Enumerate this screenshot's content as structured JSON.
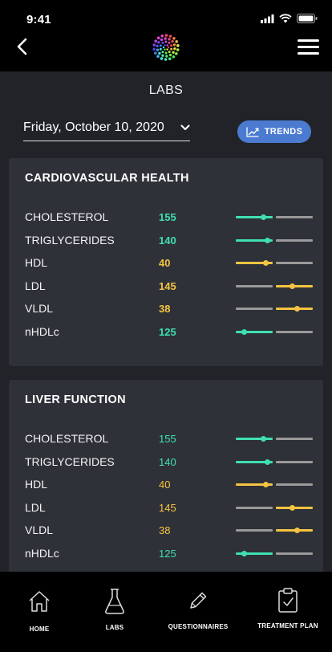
{
  "status_bar": {
    "time": "9:41"
  },
  "header": {
    "title": "LABS"
  },
  "date_selector": {
    "value": "Friday, October 10, 2020"
  },
  "trends_button": {
    "label": "TRENDS"
  },
  "colors": {
    "green": "#3fe0b0",
    "yellow": "#f5c441",
    "gray": "#9a9a9a",
    "accent": "#4a7bd0"
  },
  "sections": [
    {
      "title": "CARDIOVASCULAR HEALTH",
      "rows": [
        {
          "name": "CHOLESTEROL",
          "value": "155",
          "status": "green",
          "zone": 0,
          "level": 0.75
        },
        {
          "name": "TRIGLYCERIDES",
          "value": "140",
          "status": "green",
          "zone": 0,
          "level": 0.85
        },
        {
          "name": "HDL",
          "value": "40",
          "status": "yellow",
          "zone": 0,
          "level": 0.82
        },
        {
          "name": "LDL",
          "value": "145",
          "status": "yellow",
          "zone": 1,
          "level": 0.45
        },
        {
          "name": "VLDL",
          "value": "38",
          "status": "yellow",
          "zone": 1,
          "level": 0.58
        },
        {
          "name": "nHDLc",
          "value": "125",
          "status": "green",
          "zone": 0,
          "level": 0.22
        }
      ]
    },
    {
      "title": "LIVER FUNCTION",
      "rows": [
        {
          "name": "CHOLESTEROL",
          "value": "155",
          "status": "green",
          "zone": 0,
          "level": 0.75
        },
        {
          "name": "TRIGLYCERIDES",
          "value": "140",
          "status": "green",
          "zone": 0,
          "level": 0.85
        },
        {
          "name": "HDL",
          "value": "40",
          "status": "yellow",
          "zone": 0,
          "level": 0.82
        },
        {
          "name": "LDL",
          "value": "145",
          "status": "yellow",
          "zone": 1,
          "level": 0.45
        },
        {
          "name": "VLDL",
          "value": "38",
          "status": "yellow",
          "zone": 1,
          "level": 0.58
        },
        {
          "name": "nHDLc",
          "value": "125",
          "status": "green",
          "zone": 0,
          "level": 0.22
        }
      ]
    }
  ],
  "tabs": [
    {
      "label": "HOME",
      "icon": "home-icon"
    },
    {
      "label": "LABS",
      "icon": "flask-icon"
    },
    {
      "label": "QUESTIONNAIRES",
      "icon": "pencil-icon"
    },
    {
      "label": "TREATMENT PLAN",
      "icon": "clipboard-check-icon"
    }
  ]
}
